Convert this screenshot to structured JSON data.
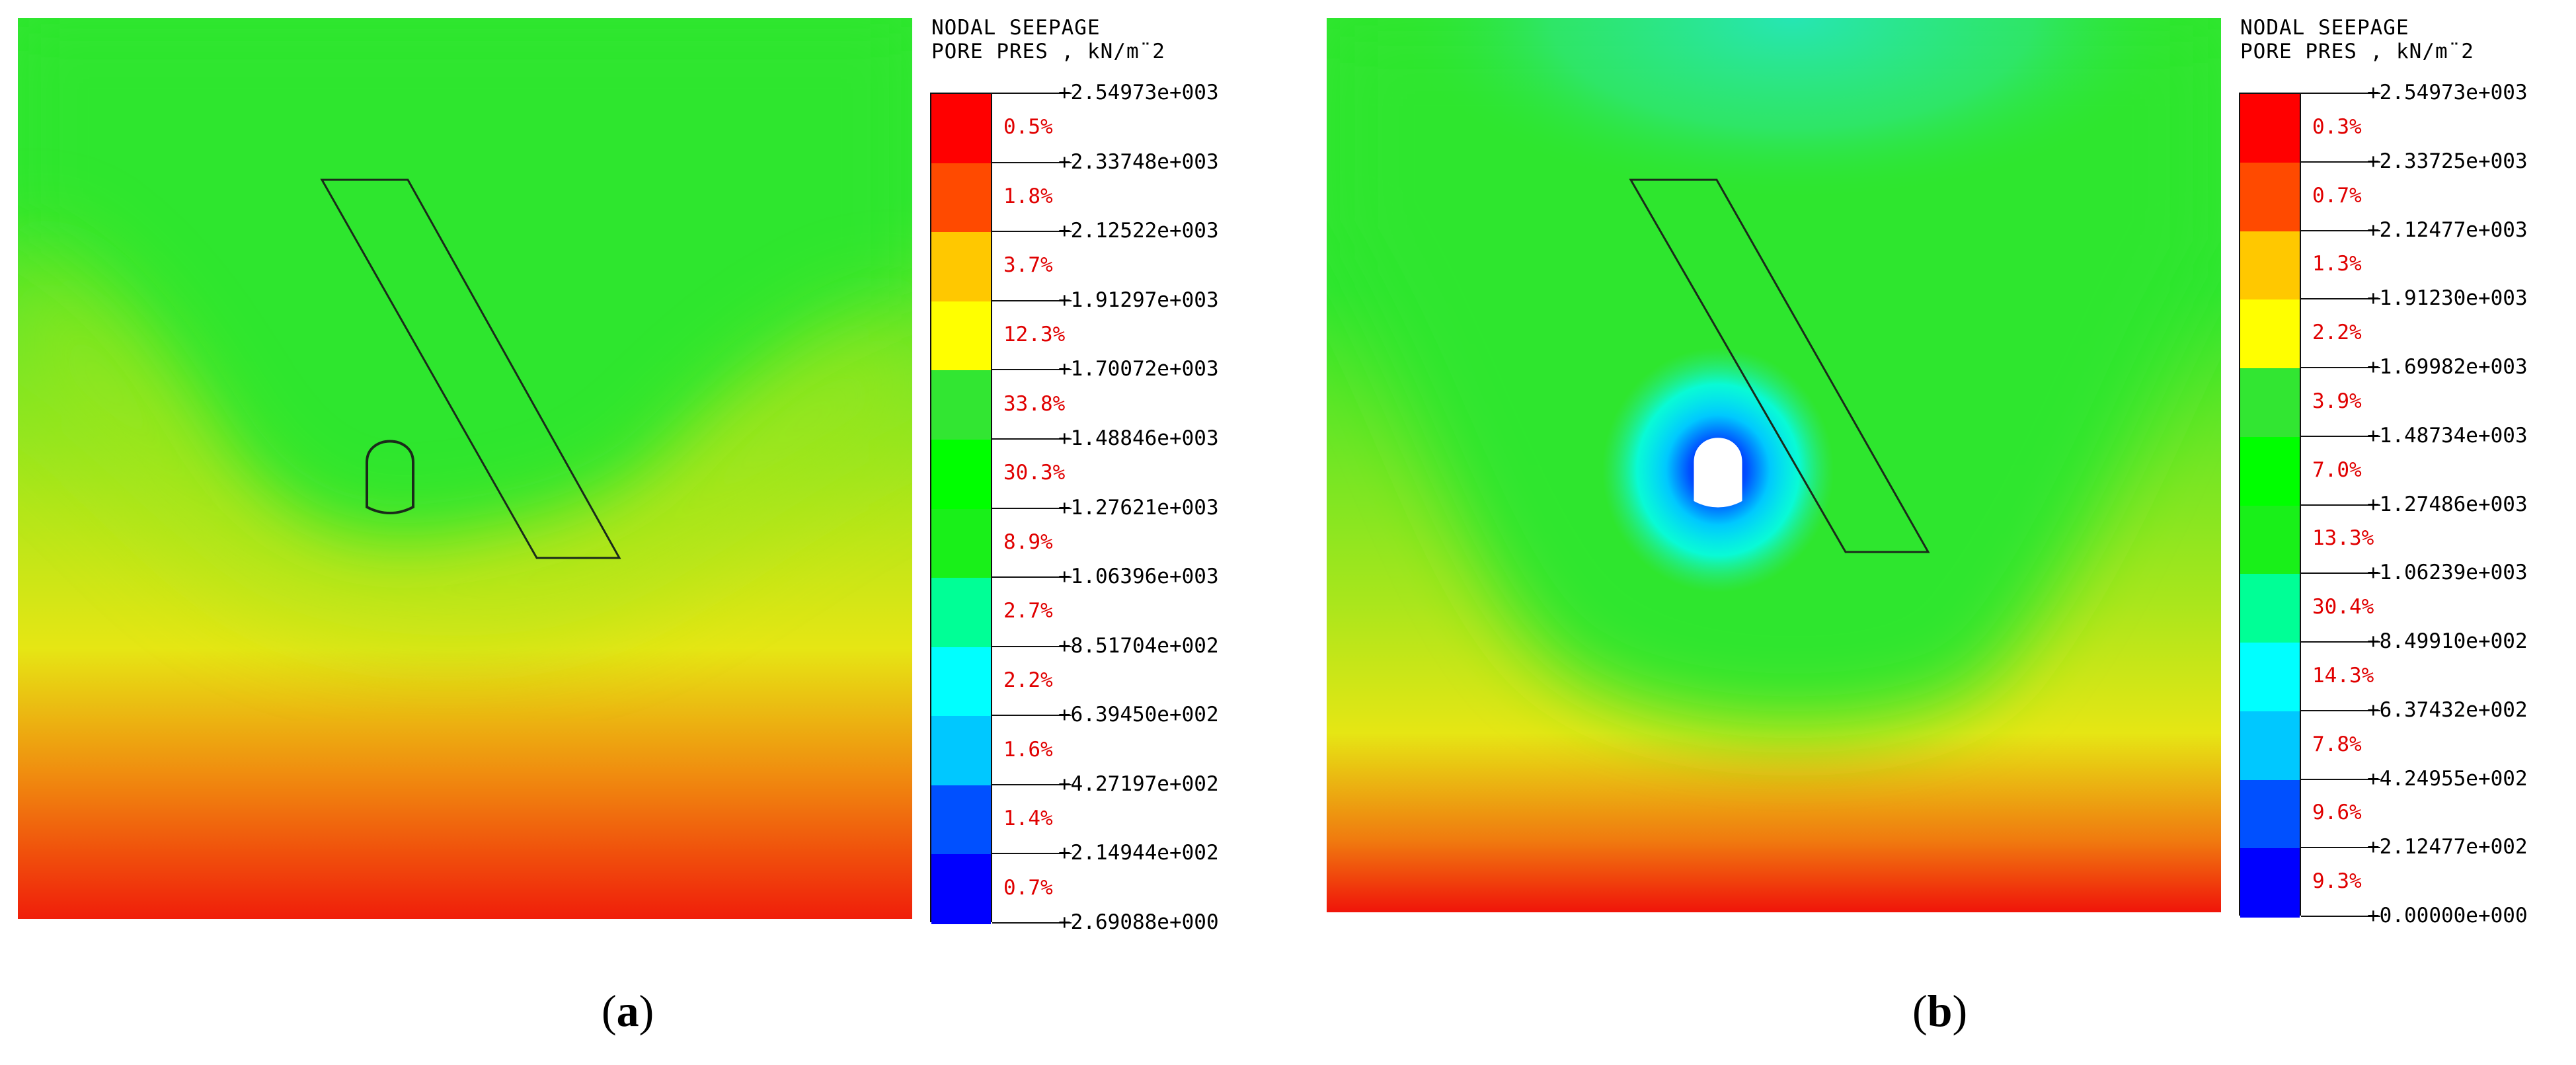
{
  "figures": [
    {
      "caption_letter": "a",
      "legend": {
        "title_line1": "NODAL SEEPAGE",
        "title_line2": "PORE PRES , kN/m¨2",
        "values": [
          "+2.54973e+003",
          "+2.33748e+003",
          "+2.12522e+003",
          "+1.91297e+003",
          "+1.70072e+003",
          "+1.48846e+003",
          "+1.27621e+003",
          "+1.06396e+003",
          "+8.51704e+002",
          "+6.39450e+002",
          "+4.27197e+002",
          "+2.14944e+002",
          "+2.69088e+000"
        ],
        "percentages": [
          "0.5%",
          "1.8%",
          "3.7%",
          "12.3%",
          "33.8%",
          "30.3%",
          "8.9%",
          "2.7%",
          "2.2%",
          "1.6%",
          "1.4%",
          "0.7%"
        ],
        "colors": [
          "#ff0000",
          "#ff4a00",
          "#ffc800",
          "#ffff00",
          "#32e632",
          "#00ff00",
          "#19f019",
          "#00ff96",
          "#00ffff",
          "#00c8ff",
          "#0050ff",
          "#0000ff"
        ]
      }
    },
    {
      "caption_letter": "b",
      "legend": {
        "title_line1": "NODAL SEEPAGE",
        "title_line2": "PORE PRES , kN/m¨2",
        "values": [
          "+2.54973e+003",
          "+2.33725e+003",
          "+2.12477e+003",
          "+1.91230e+003",
          "+1.69982e+003",
          "+1.48734e+003",
          "+1.27486e+003",
          "+1.06239e+003",
          "+8.49910e+002",
          "+6.37432e+002",
          "+4.24955e+002",
          "+2.12477e+002",
          "+0.00000e+000"
        ],
        "percentages": [
          "0.3%",
          "0.7%",
          "1.3%",
          "2.2%",
          "3.9%",
          "7.0%",
          "13.3%",
          "30.4%",
          "14.3%",
          "7.8%",
          "9.6%",
          "9.3%"
        ],
        "colors": [
          "#ff0000",
          "#ff4a00",
          "#ffc800",
          "#ffff00",
          "#32e632",
          "#00ff00",
          "#19f019",
          "#00ff96",
          "#00ffff",
          "#00c8ff",
          "#0050ff",
          "#0000ff"
        ]
      }
    }
  ]
}
